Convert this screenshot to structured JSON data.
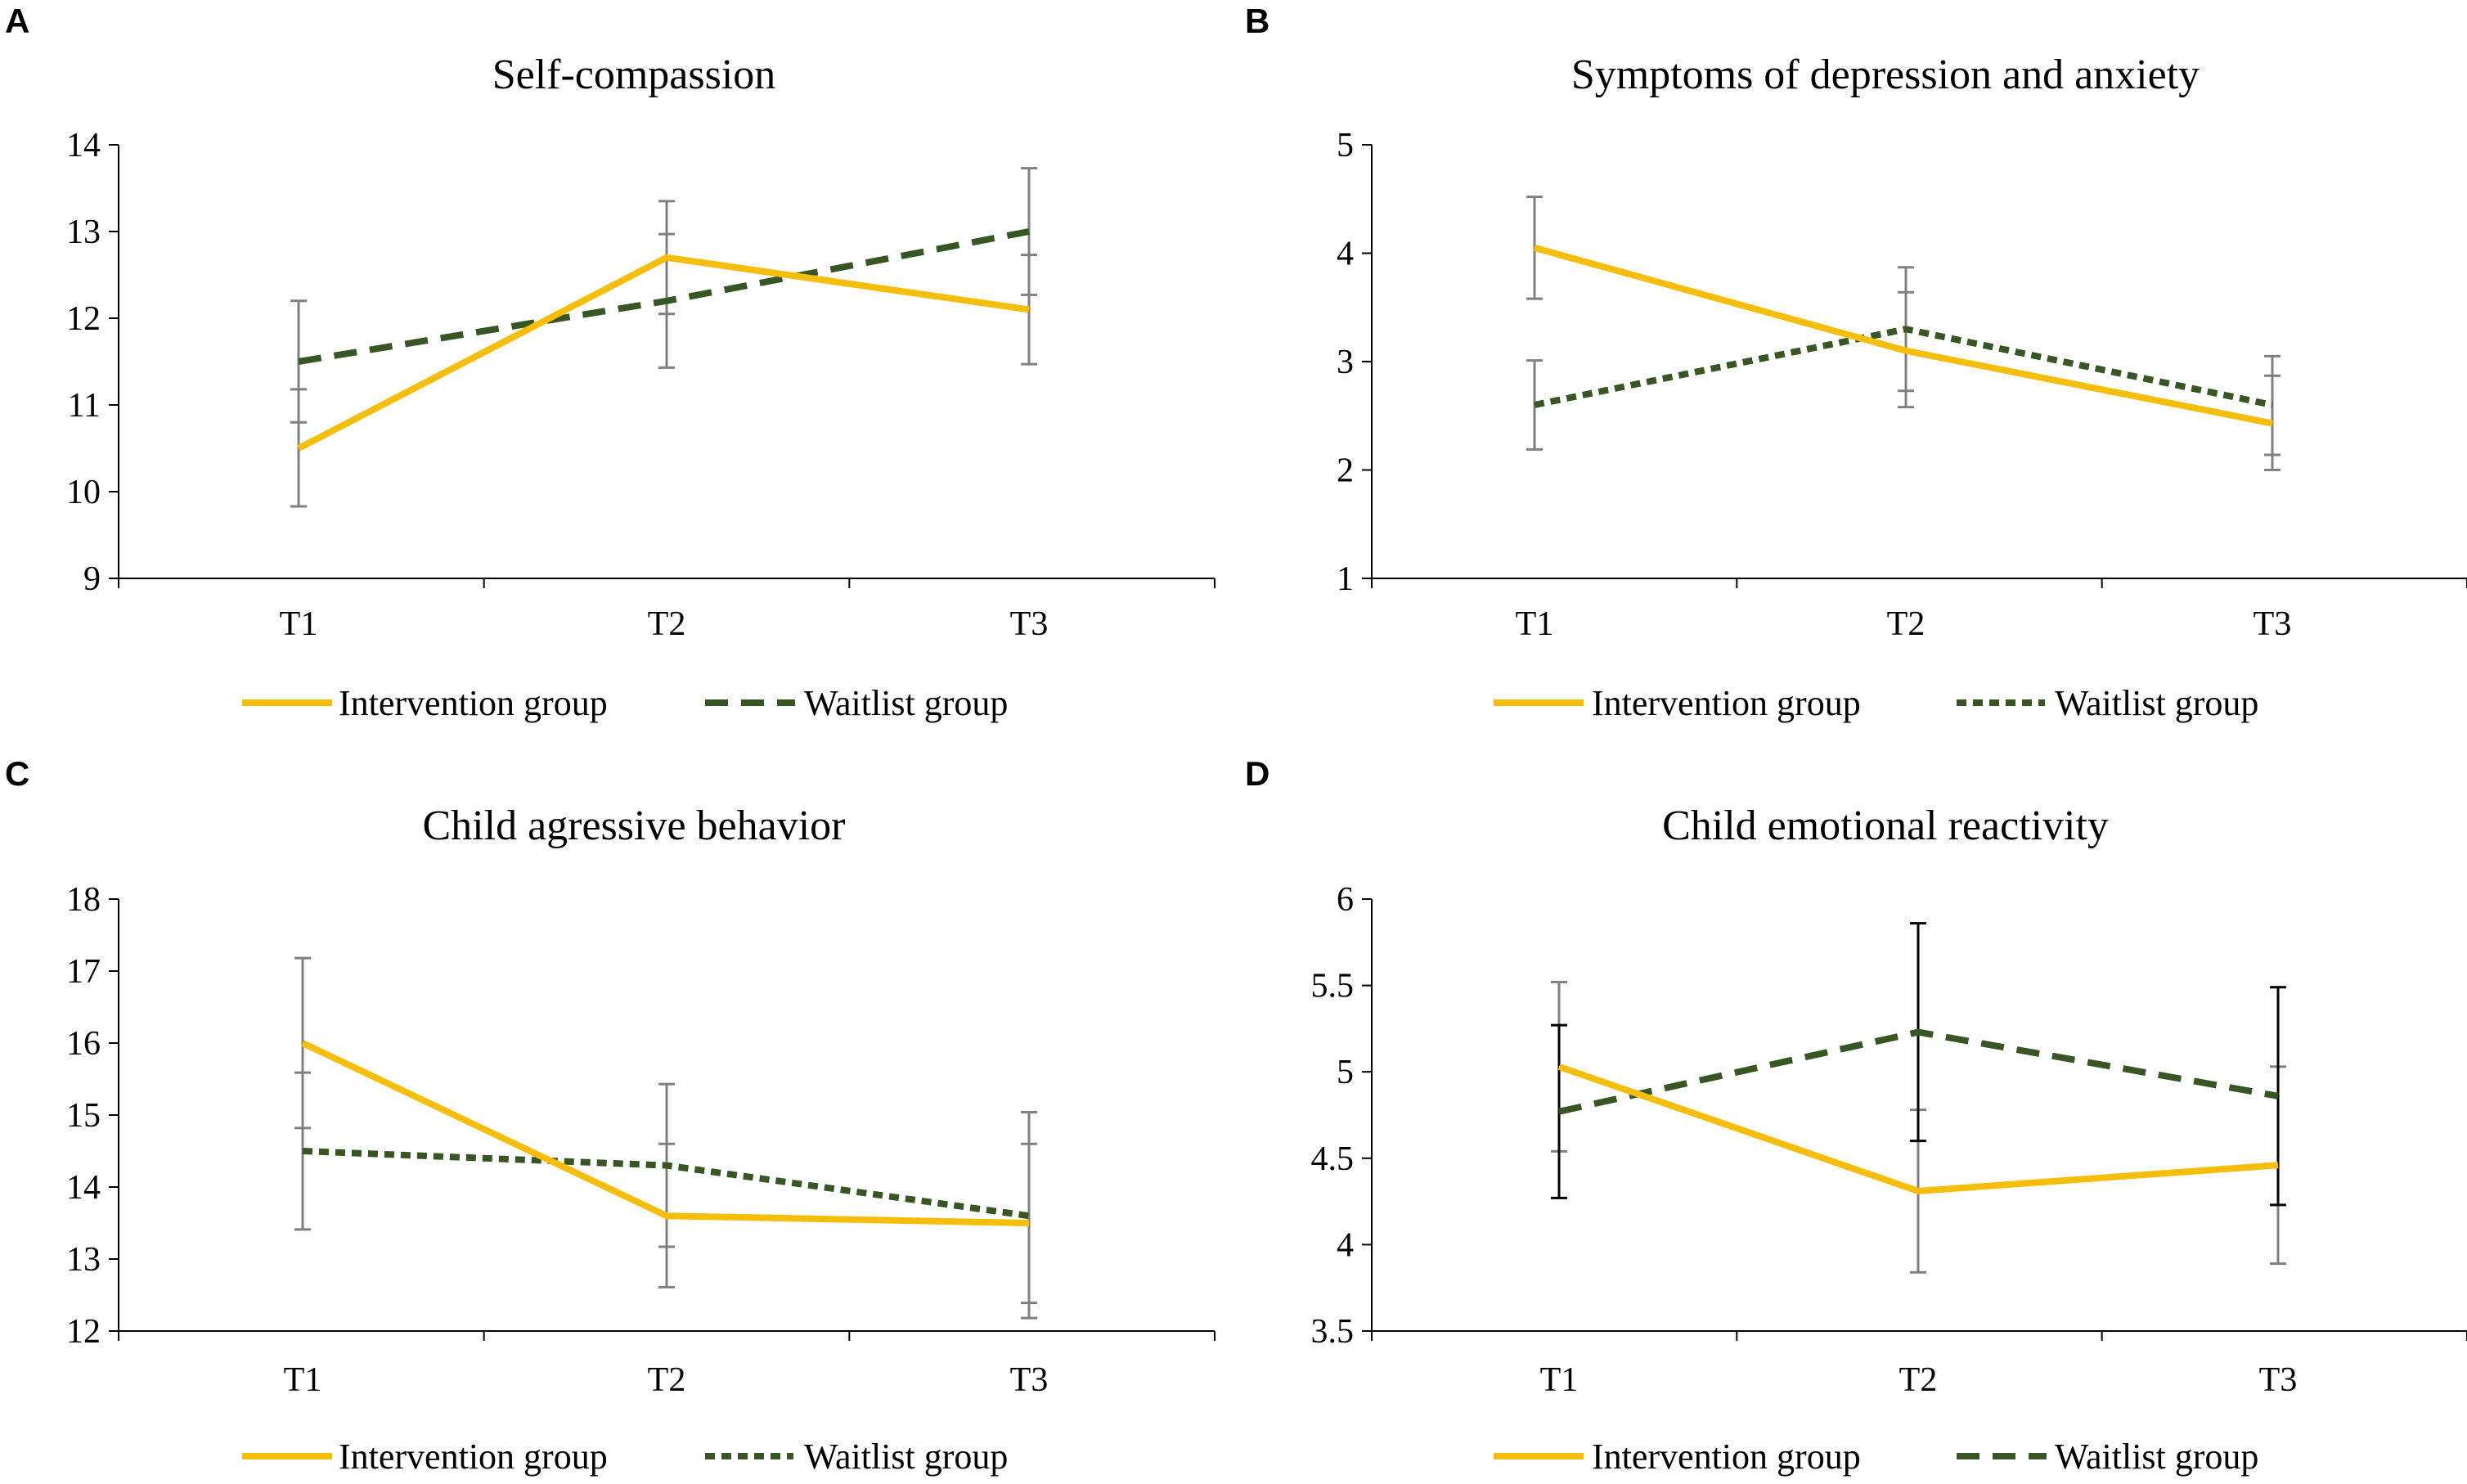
{
  "colors": {
    "intervention": "#F5BE0A",
    "waitlist": "#375623",
    "axis": "#000000",
    "errorbar_gray": "#808080",
    "errorbar_black": "#000000"
  },
  "legend": {
    "intervention_label": "Intervention group",
    "waitlist_label": "Waitlist group"
  },
  "chart_data": [
    {
      "panel": "A",
      "type": "line",
      "title": "Self-compassion",
      "categories": [
        "T1",
        "T2",
        "T3"
      ],
      "ylim": [
        9,
        14
      ],
      "yticks": [
        "9",
        "10",
        "11",
        "12",
        "13",
        "14"
      ],
      "errorbar_color": "gray",
      "waitlist_dash": "long",
      "series": [
        {
          "name": "Intervention group",
          "values": [
            10.5,
            12.7,
            12.1
          ],
          "err_low": [
            9.83,
            12.05,
            11.47
          ],
          "err_high": [
            11.18,
            13.35,
            12.73
          ]
        },
        {
          "name": "Waitlist group",
          "values": [
            11.5,
            12.2,
            13.0
          ],
          "err_low": [
            10.8,
            11.43,
            12.27
          ],
          "err_high": [
            12.2,
            12.97,
            13.73
          ]
        }
      ]
    },
    {
      "panel": "B",
      "type": "line",
      "title": "Symptoms of depression and anxiety",
      "categories": [
        "T1",
        "T2",
        "T3"
      ],
      "ylim": [
        1,
        5
      ],
      "yticks": [
        "1",
        "2",
        "3",
        "4",
        "5"
      ],
      "errorbar_color": "gray",
      "waitlist_dash": "short",
      "series": [
        {
          "name": "Intervention group",
          "values": [
            4.05,
            3.1,
            2.43
          ],
          "err_low": [
            3.58,
            2.58,
            2.0
          ],
          "err_high": [
            4.52,
            3.64,
            2.87
          ]
        },
        {
          "name": "Waitlist group",
          "values": [
            2.6,
            3.3,
            2.6
          ],
          "err_low": [
            2.19,
            2.73,
            2.14
          ],
          "err_high": [
            3.01,
            3.87,
            3.05
          ]
        }
      ]
    },
    {
      "panel": "C",
      "type": "line",
      "title": "Child agressive behavior",
      "categories": [
        "T1",
        "T2",
        "T3"
      ],
      "ylim": [
        12,
        18
      ],
      "yticks": [
        "12",
        "13",
        "14",
        "15",
        "16",
        "17",
        "18"
      ],
      "errorbar_color": "gray",
      "waitlist_dash": "short",
      "series": [
        {
          "name": "Intervention group",
          "values": [
            16.0,
            13.6,
            13.5
          ],
          "err_low": [
            14.82,
            12.61,
            12.39
          ],
          "err_high": [
            17.18,
            14.6,
            14.6
          ]
        },
        {
          "name": "Waitlist group",
          "values": [
            14.5,
            14.3,
            13.6
          ],
          "err_low": [
            13.41,
            13.17,
            12.18
          ],
          "err_high": [
            15.59,
            15.43,
            15.04
          ]
        }
      ]
    },
    {
      "panel": "D",
      "type": "line",
      "title": "Child emotional reactivity",
      "categories": [
        "T1",
        "T2",
        "T3"
      ],
      "ylim": [
        3.5,
        6
      ],
      "yticks": [
        "3.5",
        "4",
        "4.5",
        "5",
        "5.5",
        "6"
      ],
      "errorbar_color": "mixed",
      "waitlist_dash": "long",
      "series": [
        {
          "name": "Intervention group",
          "values": [
            5.03,
            4.31,
            4.46
          ],
          "err_low": [
            4.54,
            3.84,
            3.89
          ],
          "err_high": [
            5.52,
            4.78,
            5.03
          ]
        },
        {
          "name": "Waitlist group",
          "values": [
            4.77,
            5.23,
            4.86
          ],
          "err_low": [
            4.27,
            4.6,
            4.23
          ],
          "err_high": [
            5.27,
            5.86,
            5.49
          ]
        }
      ]
    }
  ]
}
